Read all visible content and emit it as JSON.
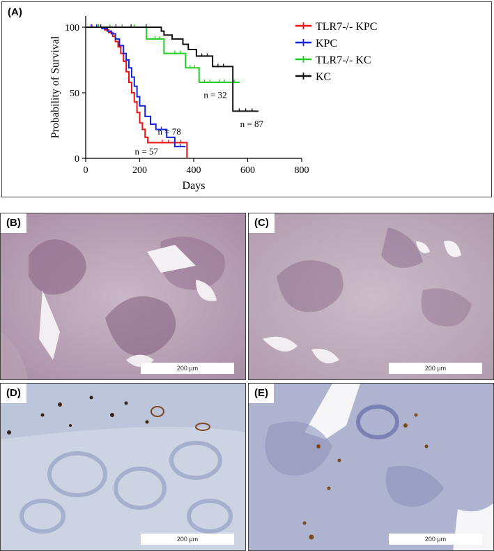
{
  "panels": {
    "a": {
      "label": "(A)"
    },
    "b": {
      "label": "(B)",
      "scale": "200 µm"
    },
    "c": {
      "label": "(C)",
      "scale": "200 µm"
    },
    "d": {
      "label": "(D)",
      "scale": "200 µm"
    },
    "e": {
      "label": "(E)",
      "scale": "200 µm"
    }
  },
  "chart_data": {
    "type": "line",
    "step": true,
    "xlabel": "Days",
    "ylabel": "Probability of Survival",
    "xlim": [
      0,
      800
    ],
    "ylim": [
      0,
      100
    ],
    "xticks": [
      0,
      200,
      400,
      600,
      800
    ],
    "yticks": [
      0,
      50,
      100
    ],
    "legend_position": "top-right",
    "series": [
      {
        "name": "TLR7-/- KPC",
        "color": "#ee1111",
        "x": [
          0,
          70,
          85,
          100,
          110,
          120,
          130,
          140,
          150,
          160,
          170,
          180,
          190,
          200,
          210,
          220,
          230,
          260,
          330,
          375
        ],
        "y": [
          100,
          98,
          96,
          93,
          89,
          85,
          80,
          74,
          66,
          58,
          50,
          43,
          35,
          27,
          22,
          16,
          12,
          12,
          12,
          0
        ],
        "annotation": "n = 57",
        "annot_x": 225,
        "annot_y": 3
      },
      {
        "name": "KPC",
        "color": "#1122dd",
        "x": [
          0,
          60,
          80,
          95,
          110,
          125,
          140,
          150,
          160,
          170,
          180,
          190,
          200,
          220,
          240,
          260,
          300,
          330,
          370
        ],
        "y": [
          100,
          99,
          97,
          95,
          91,
          86,
          80,
          75,
          69,
          62,
          55,
          47,
          40,
          32,
          26,
          22,
          16,
          9,
          9
        ],
        "annotation": "n = 78",
        "annot_x": 310,
        "annot_y": 18
      },
      {
        "name": "TLR7-/- KC",
        "color": "#22cc22",
        "x": [
          0,
          225,
          240,
          290,
          310,
          370,
          420,
          480,
          530,
          570
        ],
        "y": [
          100,
          91,
          91,
          80,
          80,
          69,
          58,
          58,
          58,
          58
        ],
        "annotation": "n = 32",
        "annot_x": 480,
        "annot_y": 46
      },
      {
        "name": "KC",
        "color": "#111111",
        "x": [
          0,
          280,
          290,
          320,
          340,
          360,
          380,
          410,
          470,
          530,
          545,
          640
        ],
        "y": [
          100,
          97,
          94,
          91,
          91,
          87,
          83,
          78,
          70,
          70,
          36,
          36
        ],
        "annotation": "n = 87",
        "annot_x": 615,
        "annot_y": 24
      }
    ]
  }
}
